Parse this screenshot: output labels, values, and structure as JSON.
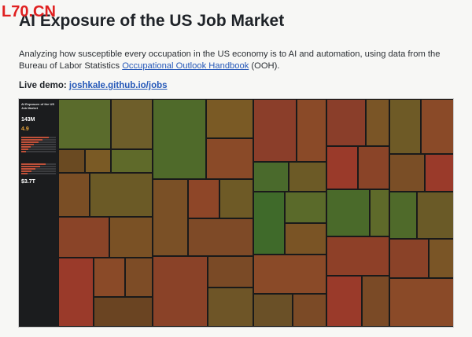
{
  "watermark": "L70.CN",
  "title": "AI Exposure of the US Job Market",
  "description": {
    "text_before": "Analyzing how susceptible every occupation in the US economy is to AI and automation, using data from the Bureau of Labor Statistics ",
    "link_text": "Occupational Outlook Handbook",
    "text_after": " (OOH)."
  },
  "demo": {
    "label": "Live demo:",
    "link_text": "joshkale.github.io/jobs"
  },
  "colors": {
    "low": "#3f6b2a",
    "mid": "#7a5a25",
    "high": "#a33a2a",
    "panel_bg": "#1b1c1e",
    "link": "#2558b8"
  },
  "panel": {
    "heading": "AI Exposure of the US Job Market",
    "total_jobs": "143M",
    "avg_exposure": "4.9",
    "score": "$3.7T",
    "bars": [
      {
        "level": 0.8
      },
      {
        "level": 0.62
      },
      {
        "level": 0.5
      },
      {
        "level": 0.36
      },
      {
        "level": 0.28
      },
      {
        "level": 0.2
      },
      {
        "level": 0.14
      }
    ],
    "bars2": [
      {
        "level": 0.7
      },
      {
        "level": 0.55
      },
      {
        "level": 0.42
      },
      {
        "level": 0.3
      },
      {
        "level": 0.18
      }
    ]
  }
}
